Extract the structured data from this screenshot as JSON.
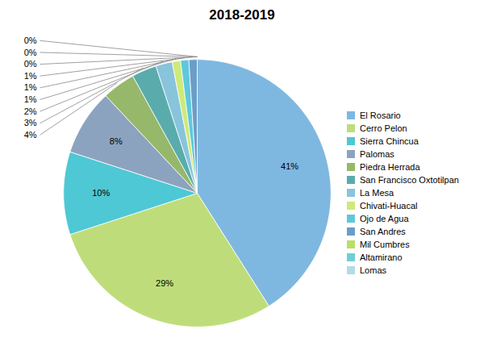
{
  "chart_data": {
    "type": "pie",
    "title": "2018-2019",
    "categories": [
      "El Rosario",
      "Cerro Pelon",
      "Sierra Chincua",
      "Palomas",
      "Piedra Herrada",
      "San Francisco Oxtotilpan",
      "La Mesa",
      "Chivati-Huacal",
      "Ojo de Agua",
      "San Andres",
      "Mil Cumbres",
      "Altamirano",
      "Lomas"
    ],
    "values": [
      41,
      29,
      10,
      8,
      4,
      3,
      2,
      1,
      1,
      1,
      0,
      0,
      0
    ],
    "value_labels": [
      "41%",
      "29%",
      "10%",
      "8%",
      "4%",
      "3%",
      "2%",
      "1%",
      "1%",
      "1%",
      "0%",
      "0%",
      "0%"
    ],
    "colors": [
      "#7EB8E0",
      "#BEDD7A",
      "#4EC8D4",
      "#8CA3C0",
      "#96B86A",
      "#5AACAC",
      "#88C4DC",
      "#CEEA78",
      "#5EC8DC",
      "#6A9EC8",
      "#BADE66",
      "#6FCFD6",
      "#B0DCE8"
    ],
    "data_labels": true,
    "legend": "right"
  }
}
